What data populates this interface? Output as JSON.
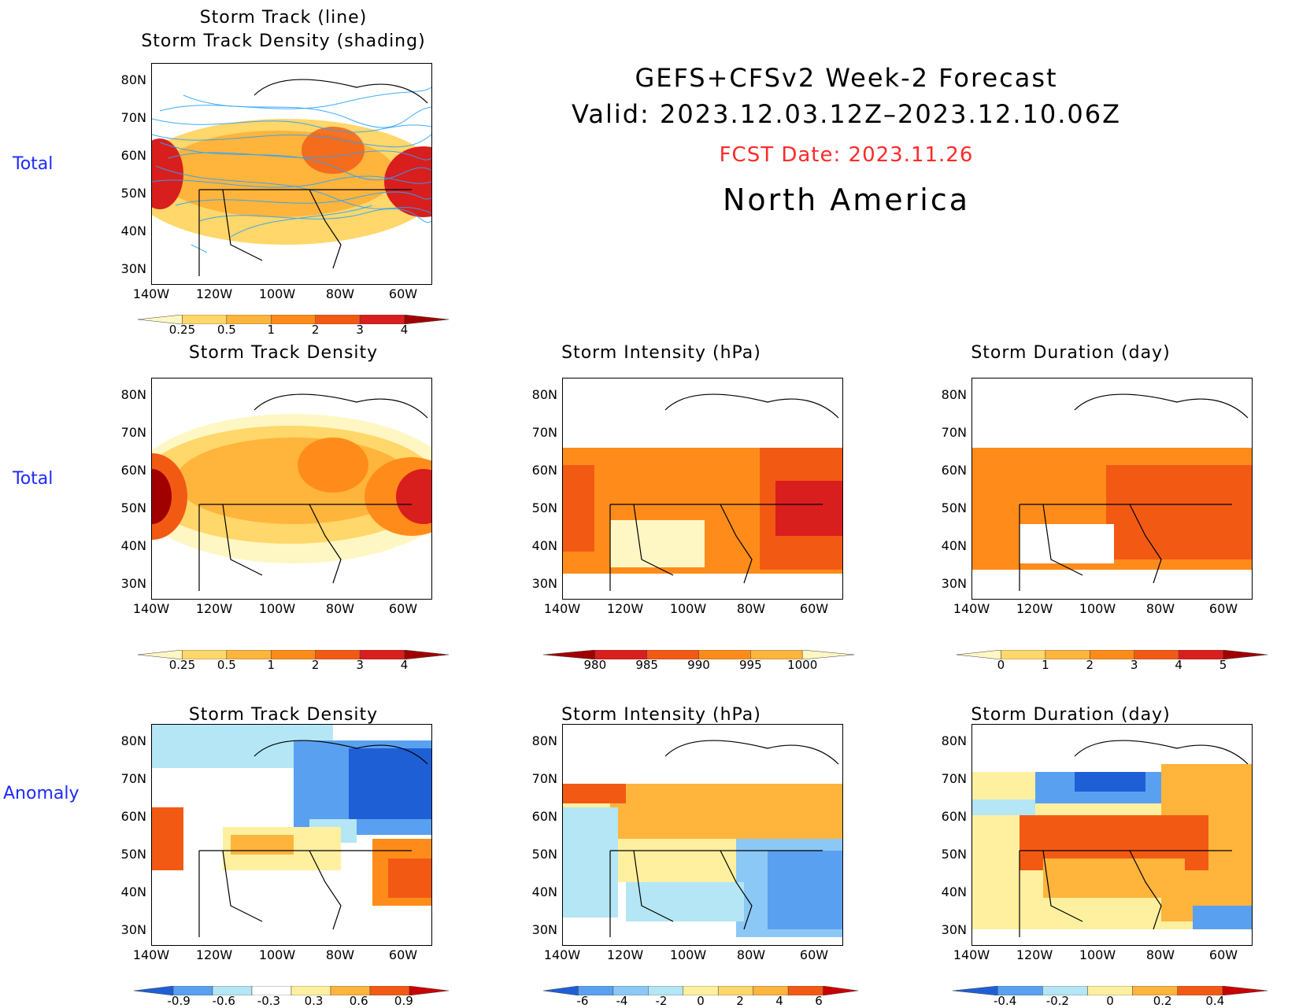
{
  "header": {
    "line1": "GEFS+CFSv2 Week-2 Forecast",
    "line2": "Valid: 2023.12.03.12Z–2023.12.10.06Z",
    "fcst": "FCST Date: 2023.11.26",
    "region": "North America"
  },
  "colors": {
    "fcst_red": "#ff2a2a",
    "label_blue": "#1e2aff",
    "track_line": "#2aa3ff"
  },
  "row_labels": {
    "r1": "Total",
    "r2": "Total",
    "r3": "Anomaly"
  },
  "axes": {
    "lat": [
      "80N",
      "70N",
      "60N",
      "50N",
      "40N",
      "30N"
    ],
    "lon": [
      "140W",
      "120W",
      "100W",
      "80W",
      "60W"
    ]
  },
  "panels": {
    "p1": {
      "title1": "Storm Track (line)",
      "title2": "Storm Track Density (shading)",
      "cbar_colors": [
        "#fff7c3",
        "#ffd76a",
        "#ffb43c",
        "#ff8c1a",
        "#f25a14",
        "#d91e1e",
        "#a00000"
      ],
      "cbar_labels": [
        "0.25",
        "0.5",
        "1",
        "2",
        "3",
        "4"
      ]
    },
    "p2": {
      "title": "Storm Track Density",
      "cbar_colors": [
        "#fff7c3",
        "#ffd76a",
        "#ffb43c",
        "#ff8c1a",
        "#f25a14",
        "#d91e1e",
        "#a00000"
      ],
      "cbar_labels": [
        "0.25",
        "0.5",
        "1",
        "2",
        "3",
        "4"
      ]
    },
    "p3": {
      "title": "Storm Intensity (hPa)",
      "cbar_colors": [
        "#a00000",
        "#d91e1e",
        "#f25a14",
        "#ff8c1a",
        "#ffb43c",
        "#fff7c3"
      ],
      "cbar_labels": [
        "980",
        "985",
        "990",
        "995",
        "1000"
      ]
    },
    "p4": {
      "title": "Storm Duration (day)",
      "cbar_colors": [
        "#fff7c3",
        "#ffd76a",
        "#ffb43c",
        "#ff8c1a",
        "#f25a14",
        "#d91e1e",
        "#a00000"
      ],
      "cbar_labels": [
        "0",
        "1",
        "2",
        "3",
        "4",
        "5"
      ]
    },
    "p5": {
      "title": "Storm Track Density",
      "cbar_colors": [
        "#1f5fd6",
        "#5aa0f0",
        "#b4e6f5",
        "#ffffff",
        "#fff0a0",
        "#ffb43c",
        "#f25a14",
        "#c80000"
      ],
      "cbar_labels": [
        "-0.9",
        "-0.6",
        "-0.3",
        "0.3",
        "0.6",
        "0.9"
      ]
    },
    "p6": {
      "title": "Storm Intensity (hPa)",
      "cbar_colors": [
        "#1f5fd6",
        "#5aa0f0",
        "#8cc8f5",
        "#b4e6f5",
        "#fff0a0",
        "#ffd76a",
        "#ffb43c",
        "#f25a14",
        "#c80000"
      ],
      "cbar_labels": [
        "-6",
        "-4",
        "-2",
        "0",
        "2",
        "4",
        "6"
      ]
    },
    "p7": {
      "title": "Storm Duration (day)",
      "cbar_colors": [
        "#1f5fd6",
        "#5aa0f0",
        "#b4e6f5",
        "#fff0a0",
        "#ffb43c",
        "#f25a14",
        "#c80000"
      ],
      "cbar_labels": [
        "-0.4",
        "-0.2",
        "0",
        "0.2",
        "0.4"
      ]
    }
  }
}
